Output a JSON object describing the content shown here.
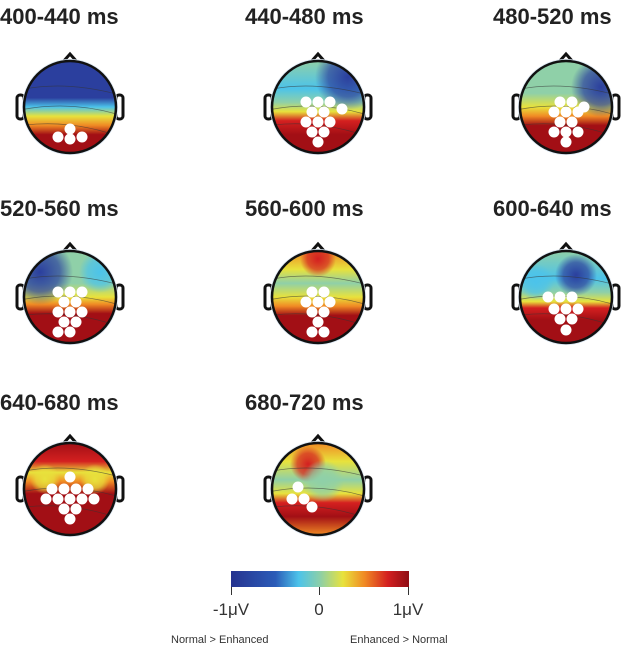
{
  "maps": [
    {
      "label": "400-440 ms"
    },
    {
      "label": "440-480 ms"
    },
    {
      "label": "480-520 ms"
    },
    {
      "label": "520-560 ms"
    },
    {
      "label": "560-600 ms"
    },
    {
      "label": "600-640 ms"
    },
    {
      "label": "640-680 ms"
    },
    {
      "label": "680-720 ms"
    }
  ],
  "colorbar": {
    "min_label": "-1μV",
    "mid_label": "0",
    "max_label": "1μV",
    "left_caption": "Normal > Enhanced",
    "right_caption": "Enhanced > Normal",
    "colors": [
      "#26338f",
      "#4cc3ea",
      "#8ccfa8",
      "#e8e23c",
      "#f08a24",
      "#d42020",
      "#8f0d14"
    ]
  }
}
